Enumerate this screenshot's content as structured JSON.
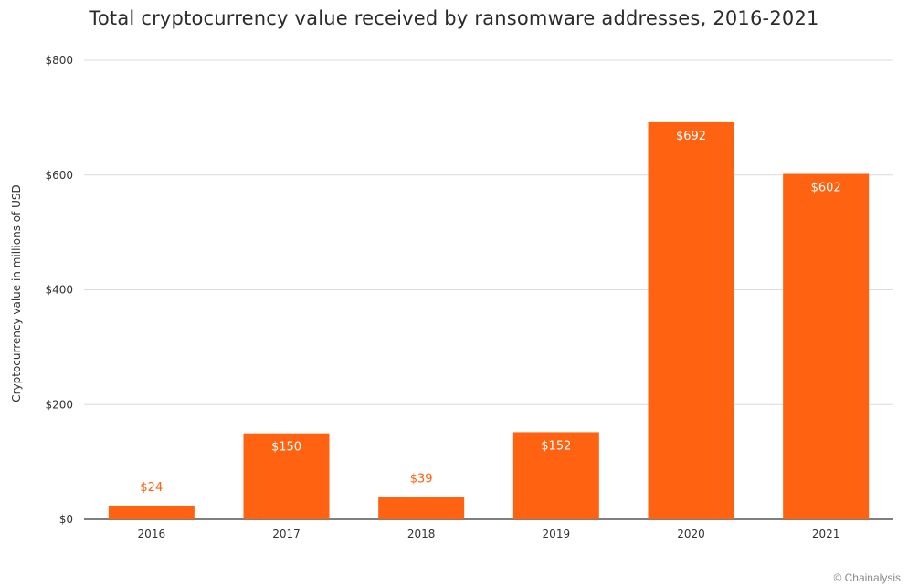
{
  "chart_data": {
    "type": "bar",
    "title": "Total cryptocurrency value received by ransomware addresses, 2016-2021",
    "xlabel": "",
    "ylabel": "Cryptocurrency value in millions of  USD",
    "categories": [
      "2016",
      "2017",
      "2018",
      "2019",
      "2020",
      "2021"
    ],
    "values": [
      24,
      150,
      39,
      152,
      692,
      602
    ],
    "data_labels": [
      "$24",
      "$150",
      "$39",
      "$152",
      "$692",
      "$602"
    ],
    "y_ticks": [
      0,
      200,
      400,
      600,
      800
    ],
    "y_tick_labels": [
      "$0",
      "$200",
      "$400",
      "$600",
      "$800"
    ],
    "ylim": [
      0,
      800
    ],
    "grid": true,
    "legend": "none",
    "colors": {
      "bar": "#ff6210",
      "label_inside": "#ffffff",
      "label_outside": "#ff6210",
      "grid": "#dcdcdc",
      "axis": "#333333"
    }
  },
  "footer": {
    "watermark": "© Chainalysis"
  }
}
